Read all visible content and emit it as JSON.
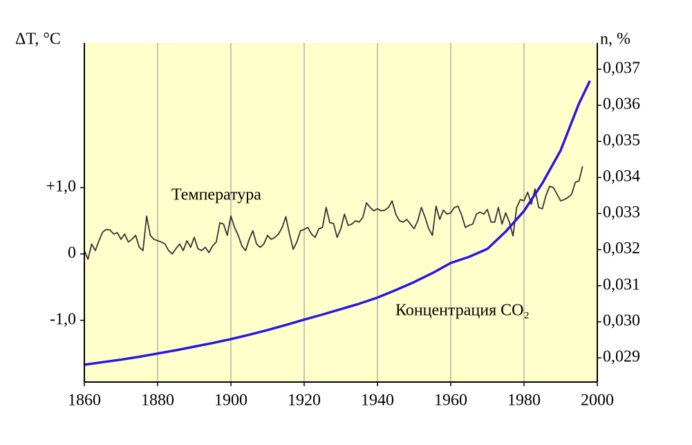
{
  "chart_data": {
    "type": "line",
    "y_label": "ΔT, °C",
    "y2_label": "n, %",
    "xlim": [
      1860,
      2000
    ],
    "xticks": [
      1860,
      1880,
      1900,
      1920,
      1940,
      1960,
      1980,
      2000
    ],
    "ylim": [
      -1.93,
      3.18
    ],
    "yticks": [
      {
        "value": -1,
        "label": "-1,0"
      },
      0,
      {
        "value": 1,
        "label": "+1,0"
      }
    ],
    "y2lim": [
      0.02833,
      0.03773
    ],
    "y2ticks": [
      {
        "value": 0.029,
        "label": "0,029"
      },
      {
        "value": 0.03,
        "label": "0,030"
      },
      {
        "value": 0.031,
        "label": "0,031"
      },
      {
        "value": 0.032,
        "label": "0,032"
      },
      {
        "value": 0.033,
        "label": "0,033"
      },
      {
        "value": 0.034,
        "label": "0,034"
      },
      {
        "value": 0.035,
        "label": "0,035"
      },
      {
        "value": 0.036,
        "label": "0,036"
      },
      {
        "value": 0.037,
        "label": "0,037"
      }
    ],
    "grid": true,
    "background": "#ffffcc",
    "series": [
      {
        "name": "Температура",
        "color": "#333333",
        "axis": "y",
        "x": [
          1860,
          1861,
          1862,
          1863,
          1864,
          1865,
          1866,
          1867,
          1868,
          1869,
          1870,
          1871,
          1872,
          1873,
          1874,
          1875,
          1876,
          1877,
          1878,
          1879,
          1880,
          1881,
          1882,
          1883,
          1884,
          1885,
          1886,
          1887,
          1888,
          1889,
          1890,
          1891,
          1892,
          1893,
          1894,
          1895,
          1896,
          1897,
          1898,
          1899,
          1900,
          1901,
          1902,
          1903,
          1904,
          1905,
          1906,
          1907,
          1908,
          1909,
          1910,
          1911,
          1912,
          1913,
          1914,
          1915,
          1916,
          1917,
          1918,
          1919,
          1920,
          1921,
          1922,
          1923,
          1924,
          1925,
          1926,
          1927,
          1928,
          1929,
          1930,
          1931,
          1932,
          1933,
          1934,
          1935,
          1936,
          1937,
          1938,
          1939,
          1940,
          1941,
          1942,
          1943,
          1944,
          1945,
          1946,
          1947,
          1948,
          1949,
          1950,
          1951,
          1952,
          1953,
          1954,
          1955,
          1956,
          1957,
          1958,
          1959,
          1960,
          1961,
          1962,
          1963,
          1964,
          1965,
          1966,
          1967,
          1968,
          1969,
          1970,
          1971,
          1972,
          1973,
          1974,
          1975,
          1976,
          1977,
          1978,
          1979,
          1980,
          1981,
          1982,
          1983,
          1984,
          1985,
          1986,
          1987,
          1988,
          1989,
          1990,
          1991,
          1992,
          1993,
          1994,
          1995,
          1996
        ],
        "values": [
          0.05,
          -0.08,
          0.15,
          0.05,
          0.2,
          0.33,
          0.37,
          0.36,
          0.3,
          0.32,
          0.22,
          0.3,
          0.18,
          0.22,
          0.28,
          0.1,
          0.05,
          0.57,
          0.28,
          0.22,
          0.2,
          0.18,
          0.15,
          0.05,
          0.0,
          0.08,
          0.15,
          0.05,
          0.2,
          0.1,
          0.25,
          0.08,
          0.05,
          0.1,
          0.02,
          0.12,
          0.18,
          0.47,
          0.45,
          0.28,
          0.57,
          0.4,
          0.28,
          0.12,
          0.05,
          0.22,
          0.35,
          0.15,
          0.1,
          0.15,
          0.28,
          0.22,
          0.25,
          0.3,
          0.4,
          0.56,
          0.3,
          0.07,
          0.18,
          0.35,
          0.37,
          0.4,
          0.3,
          0.25,
          0.38,
          0.4,
          0.7,
          0.47,
          0.46,
          0.25,
          0.38,
          0.6,
          0.43,
          0.45,
          0.5,
          0.48,
          0.55,
          0.77,
          0.7,
          0.65,
          0.68,
          0.65,
          0.66,
          0.7,
          0.8,
          0.6,
          0.5,
          0.48,
          0.52,
          0.45,
          0.38,
          0.5,
          0.7,
          0.55,
          0.38,
          0.28,
          0.72,
          0.52,
          0.66,
          0.6,
          0.62,
          0.7,
          0.72,
          0.58,
          0.4,
          0.43,
          0.45,
          0.6,
          0.63,
          0.6,
          0.67,
          0.48,
          0.48,
          0.7,
          0.45,
          0.62,
          0.48,
          0.27,
          0.7,
          0.82,
          0.8,
          0.93,
          0.75,
          0.98,
          0.7,
          0.68,
          0.88,
          1.02,
          1.0,
          0.9,
          0.8,
          0.82,
          0.85,
          0.9,
          1.08,
          1.1,
          1.32
        ]
      },
      {
        "name": "Концентрация CO₂",
        "color": "#2a14e6",
        "axis": "y2",
        "x": [
          1860,
          1865,
          1870,
          1875,
          1880,
          1885,
          1890,
          1895,
          1900,
          1905,
          1910,
          1915,
          1920,
          1925,
          1930,
          1935,
          1940,
          1945,
          1950,
          1955,
          1960,
          1965,
          1970,
          1975,
          1980,
          1985,
          1990,
          1995,
          1998
        ],
        "values": [
          0.02881,
          0.02888,
          0.02895,
          0.02903,
          0.02912,
          0.02921,
          0.02931,
          0.02941,
          0.02952,
          0.02964,
          0.02977,
          0.02991,
          0.03006,
          0.0302,
          0.03035,
          0.0305,
          0.03067,
          0.03088,
          0.0311,
          0.03135,
          0.03163,
          0.0318,
          0.03202,
          0.0325,
          0.03307,
          0.03384,
          0.03475,
          0.03605,
          0.03668
        ]
      }
    ]
  }
}
